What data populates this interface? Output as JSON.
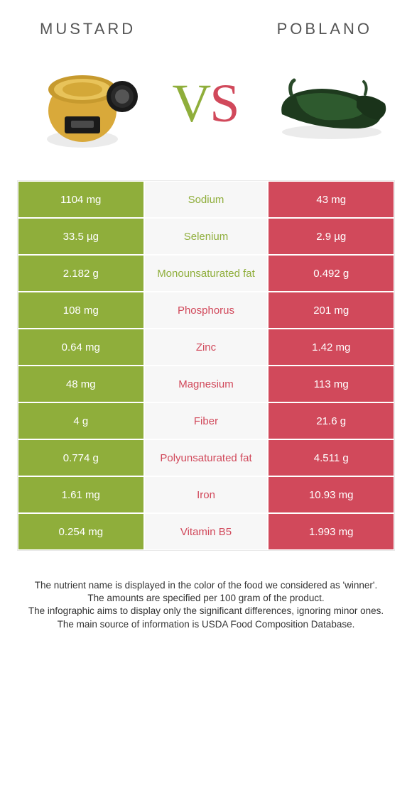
{
  "colors": {
    "left_bg": "#8fae3b",
    "right_bg": "#d1495b",
    "mid_bg": "#f7f7f7",
    "left_text": "#8fae3b",
    "right_text": "#d1495b",
    "cell_text": "#ffffff"
  },
  "header": {
    "left_title": "Mustard",
    "right_title": "Poblano"
  },
  "hero": {
    "vs_v": "V",
    "vs_s": "S"
  },
  "rows": [
    {
      "left": "1104 mg",
      "mid": "Sodium",
      "winner": "left"
    },
    {
      "left": "33.5 µg",
      "mid": "Selenium",
      "winner": "left"
    },
    {
      "left": "2.182 g",
      "mid": "Monounsaturated fat",
      "winner": "left"
    },
    {
      "left": "108 mg",
      "mid": "Phosphorus",
      "winner": "right"
    },
    {
      "left": "0.64 mg",
      "mid": "Zinc",
      "winner": "right"
    },
    {
      "left": "48 mg",
      "mid": "Magnesium",
      "winner": "right"
    },
    {
      "left": "4 g",
      "mid": "Fiber",
      "winner": "right"
    },
    {
      "left": "0.774 g",
      "mid": "Polyunsaturated fat",
      "winner": "right"
    },
    {
      "left": "1.61 mg",
      "mid": "Iron",
      "winner": "right"
    },
    {
      "left": "0.254 mg",
      "mid": "Vitamin B5",
      "winner": "right"
    }
  ],
  "rows_right": [
    "43 mg",
    "2.9 µg",
    "0.492 g",
    "201 mg",
    "1.42 mg",
    "113 mg",
    "21.6 g",
    "4.511 g",
    "10.93 mg",
    "1.993 mg"
  ],
  "footer": {
    "l1": "The nutrient name is displayed in the color of the food we considered as 'winner'.",
    "l2": "The amounts are specified per 100 gram of the product.",
    "l3": "The infographic aims to display only the significant differences, ignoring minor ones.",
    "l4": "The main source of information is USDA Food Composition Database."
  }
}
